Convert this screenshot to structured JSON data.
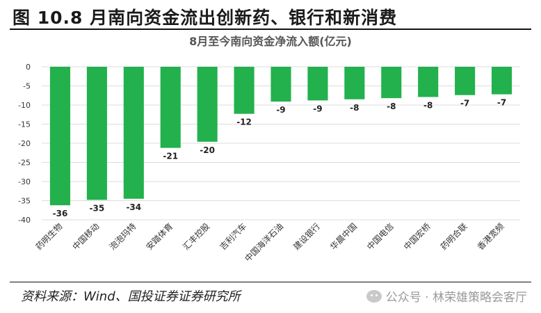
{
  "figure": {
    "title": "图 10.8 月南向资金流出创新药、银行和新消费",
    "source": "资料来源：Wind、国投证券证券研究所",
    "watermark": "公众号 · 林荣雄策略会客厅",
    "watermark_icon": "wechat-icon"
  },
  "chart_data": {
    "type": "bar",
    "title": "8月至今南向资金净流入额(亿元)",
    "xlabel": "",
    "ylabel": "",
    "ylim": [
      -40,
      0
    ],
    "yticks": [
      0,
      -5,
      -10,
      -15,
      -20,
      -25,
      -30,
      -35,
      -40
    ],
    "grid": true,
    "legend": "none",
    "bar_color": "#22b14c",
    "categories": [
      "药明生物",
      "中国移动",
      "泡泡玛特",
      "安踏体育",
      "汇丰控股",
      "吉利汽车",
      "中国海洋石油",
      "建设银行",
      "华晨中国",
      "中国电信",
      "中国宏桥",
      "药明合联",
      "香港宽频"
    ],
    "values": [
      -36.2,
      -34.8,
      -34.5,
      -21.2,
      -19.6,
      -12.3,
      -9.1,
      -8.8,
      -8.5,
      -8.2,
      -7.9,
      -7.4,
      -7.2
    ],
    "data_labels": [
      "-36",
      "-35",
      "-34",
      "-21",
      "-20",
      "-12",
      "-9",
      "-9",
      "-8",
      "-8",
      "-8",
      "-7",
      "-7"
    ]
  }
}
